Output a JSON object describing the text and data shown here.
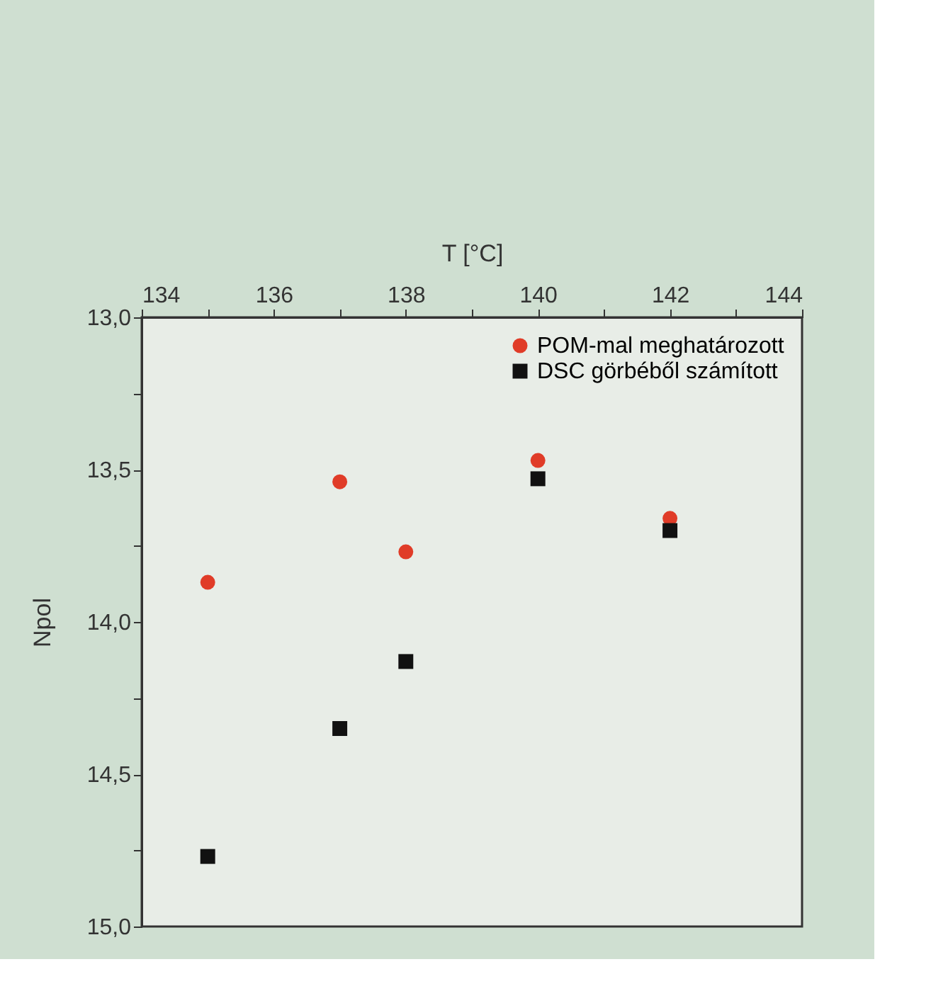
{
  "chart_data": {
    "type": "scatter",
    "xlabel": "T [°C]",
    "ylabel": "Npol",
    "x": [
      135,
      137,
      138,
      140,
      142
    ],
    "series": [
      {
        "name": "POM-mal meghatározott",
        "color": "#e03c28",
        "marker": "circle",
        "values": [
          13.87,
          13.54,
          13.77,
          13.47,
          13.66
        ]
      },
      {
        "name": "DSC görbéből számított",
        "color": "#111111",
        "marker": "square",
        "values": [
          14.77,
          14.35,
          14.13,
          13.53,
          13.7
        ]
      }
    ],
    "xlim": [
      134,
      144
    ],
    "xticks": [
      134,
      {
        "value": 135,
        "label": null
      },
      136,
      {
        "value": 137,
        "label": null
      },
      138,
      {
        "value": 139,
        "label": null
      },
      140,
      {
        "value": 141,
        "label": null
      },
      142,
      {
        "value": 143,
        "label": null
      },
      144
    ],
    "ylim": [
      15.0,
      13.0
    ],
    "yticks": [
      {
        "value": 13.0,
        "label": "13,0"
      },
      {
        "value": 13.25,
        "label": null
      },
      {
        "value": 13.5,
        "label": "13,5"
      },
      {
        "value": 13.75,
        "label": null
      },
      {
        "value": 14.0,
        "label": "14,0"
      },
      {
        "value": 14.25,
        "label": null
      },
      {
        "value": 14.5,
        "label": "14,5"
      },
      {
        "value": 14.75,
        "label": null
      },
      {
        "value": 15.0,
        "label": "15,0"
      }
    ],
    "legend": "top right",
    "grid": false
  }
}
